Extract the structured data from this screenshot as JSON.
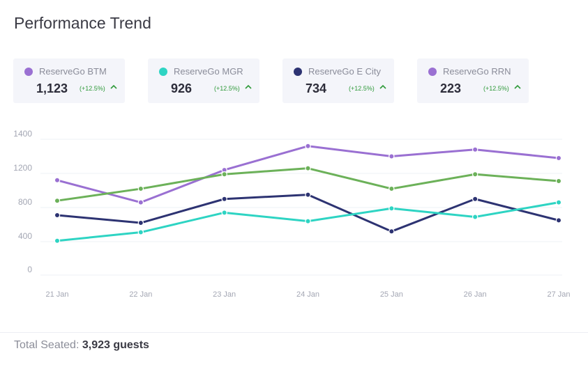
{
  "header": {
    "title": "Performance Trend"
  },
  "cards": [
    {
      "name": "ReserveGo BTM",
      "value": "1,123",
      "change": "(+12.5%)",
      "color": "#9a70d2"
    },
    {
      "name": "ReserveGo MGR",
      "value": "926",
      "change": "(+12.5%)",
      "color": "#2ed4c3"
    },
    {
      "name": "ReserveGo E City",
      "value": "734",
      "change": "(+12.5%)",
      "color": "#2d3372"
    },
    {
      "name": "ReserveGo RRN",
      "value": "223",
      "change": "(+12.5%)",
      "color": "#9a70d2"
    }
  ],
  "footer": {
    "label": "Total Seated:",
    "value": "3,923 guests"
  },
  "chart_data": {
    "type": "line",
    "title": "",
    "xlabel": "",
    "ylabel": "",
    "categories": [
      "21 Jan",
      "22 Jan",
      "23 Jan",
      "24 Jan",
      "25 Jan",
      "26 Jan",
      "27 Jan"
    ],
    "y_ticks": [
      0,
      400,
      800,
      1200,
      1400
    ],
    "ylim": [
      0,
      1400
    ],
    "grid": true,
    "legend": "none",
    "series": [
      {
        "color": "#9a70d2",
        "values": [
          1120,
          860,
          1220,
          1360,
          1300,
          1340,
          1290
        ]
      },
      {
        "color": "#6cb159",
        "values": [
          880,
          1020,
          1190,
          1230,
          1020,
          1190,
          1110
        ]
      },
      {
        "color": "#2d3372",
        "values": [
          710,
          620,
          900,
          950,
          520,
          900,
          650
        ]
      },
      {
        "color": "#2ed4c3",
        "values": [
          410,
          510,
          740,
          640,
          790,
          690,
          860
        ]
      }
    ]
  }
}
